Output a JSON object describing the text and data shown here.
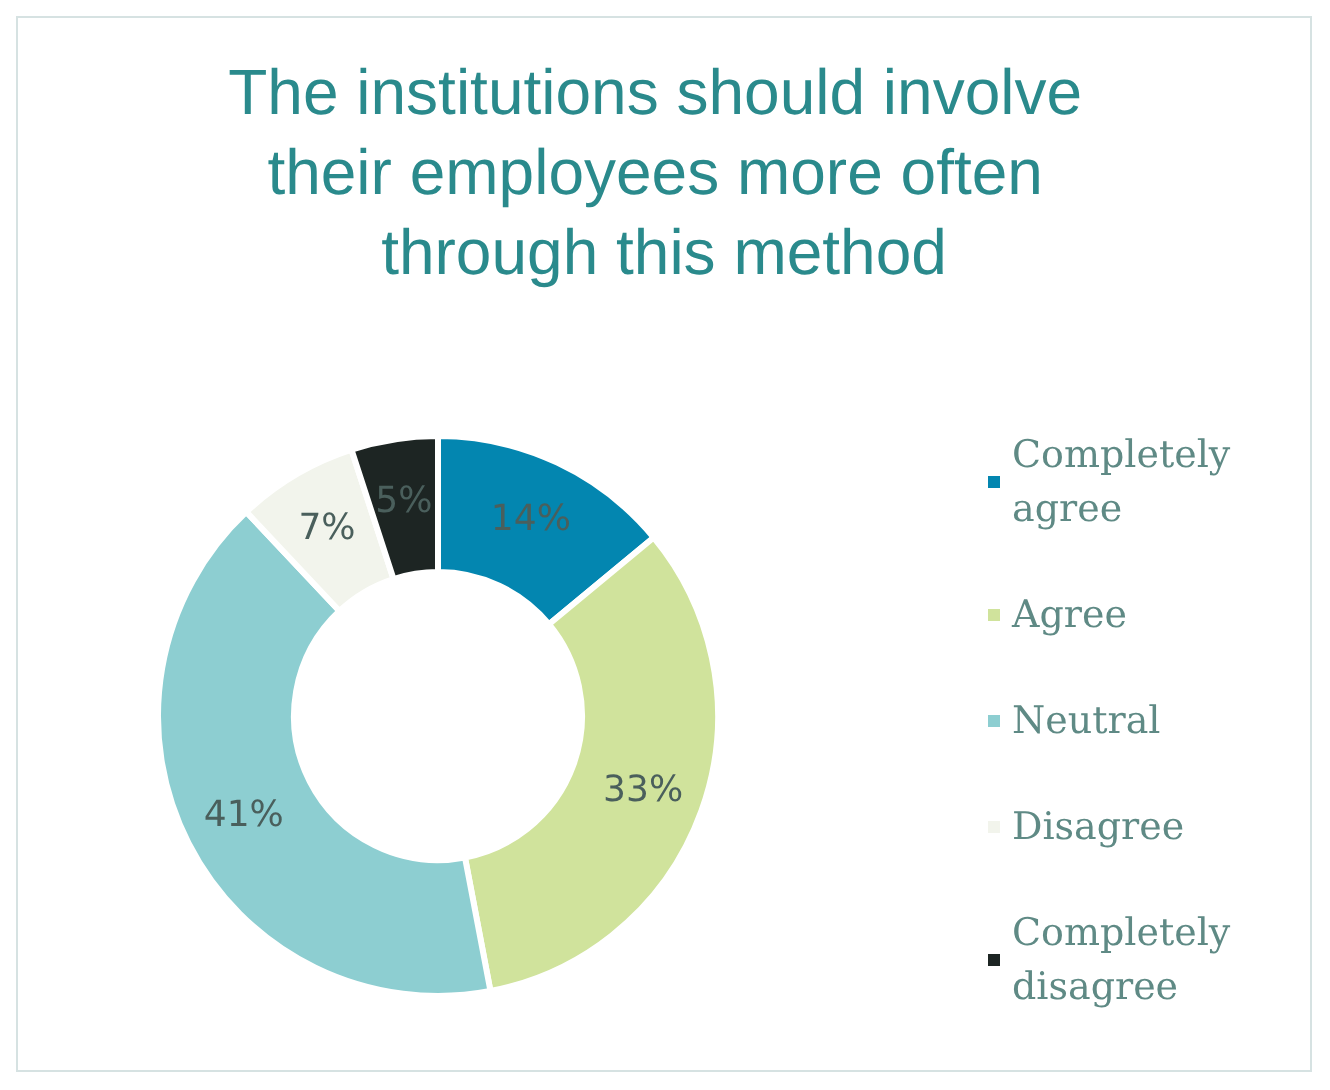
{
  "chart_data": {
    "type": "donut",
    "title": "The institutions should involve their employees more often through this method",
    "categories": [
      "Completely agree",
      "Agree",
      "Neutral",
      "Disagree",
      "Completely disagree"
    ],
    "values": [
      14,
      33,
      41,
      7,
      5
    ],
    "colors": [
      "#0386b0",
      "#d0e39c",
      "#8dced1",
      "#f2f4ec",
      "#1d2523"
    ],
    "value_labels": [
      "14%",
      "33%",
      "41%",
      "7%",
      "5%"
    ],
    "legend": "right"
  }
}
